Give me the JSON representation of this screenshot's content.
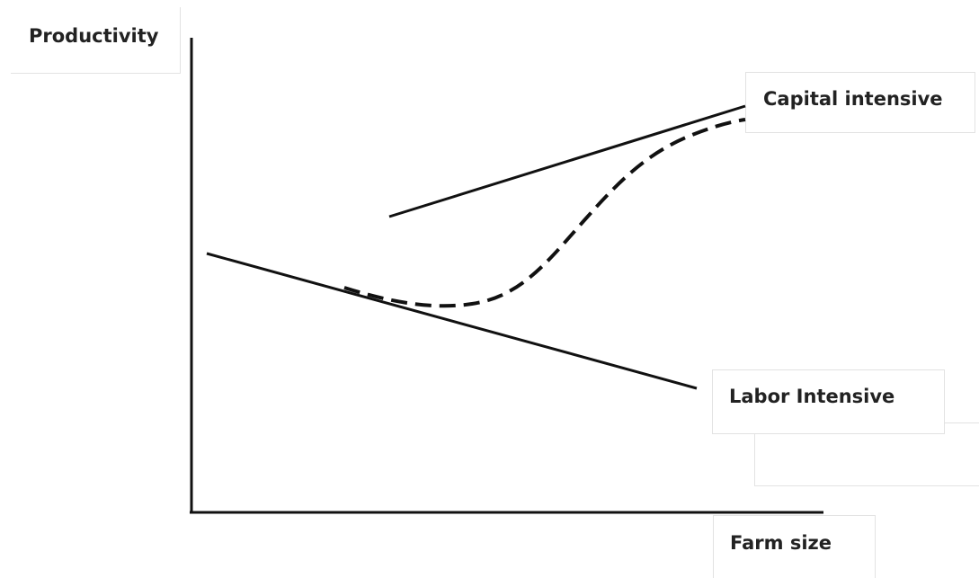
{
  "labels": {
    "y_axis": "Productivity",
    "x_axis": "Farm size",
    "capital": "Capital intensive",
    "labor": "Labor Intensive"
  }
}
